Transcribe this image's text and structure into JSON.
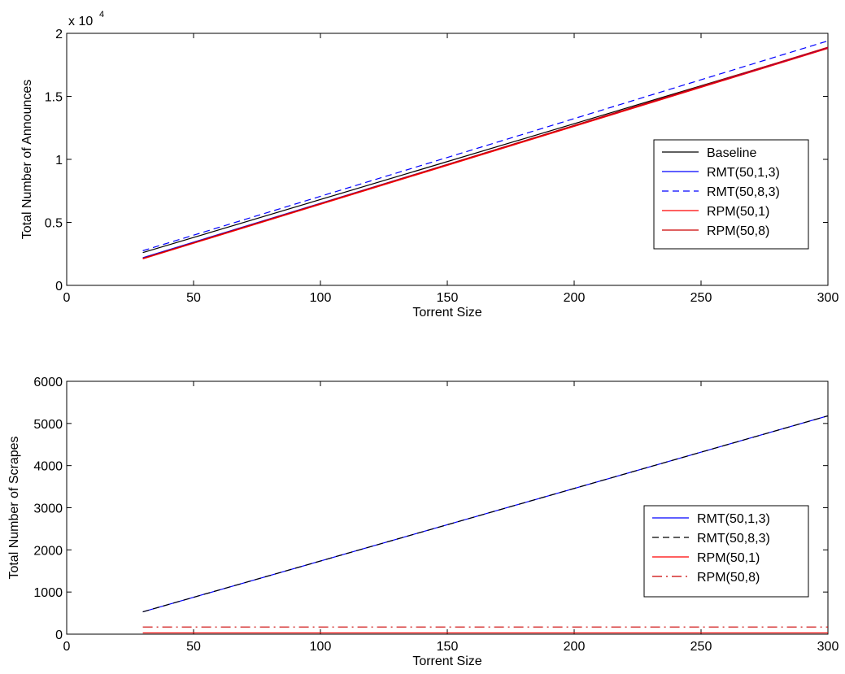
{
  "chart_data": [
    {
      "type": "line",
      "xlabel": "Torrent Size",
      "ylabel": "Total Number of Announces",
      "multiplier_label": "x 10",
      "multiplier_exponent": "4",
      "xlim": [
        0,
        300
      ],
      "ylim": [
        0,
        2
      ],
      "xticks": [
        0,
        50,
        100,
        150,
        200,
        250,
        300
      ],
      "xtick_labels": [
        "0",
        "50",
        "100",
        "150",
        "200",
        "250",
        "300"
      ],
      "yticks": [
        0,
        0.5,
        1,
        1.5,
        2
      ],
      "ytick_labels": [
        "0",
        "0.5",
        "1",
        "1.5",
        "2"
      ],
      "grid": false,
      "legend_position": "right",
      "series": [
        {
          "name": "Baseline",
          "color": "#000000",
          "style": "solid",
          "x": [
            30,
            300
          ],
          "y": [
            0.26,
            1.885
          ]
        },
        {
          "name": "RMT(50,1,3)",
          "color": "#0000ff",
          "style": "solid",
          "x": [
            30,
            300
          ],
          "y": [
            0.22,
            1.885
          ]
        },
        {
          "name": "RMT(50,8,3)",
          "color": "#0000ff",
          "style": "dashed",
          "x": [
            30,
            300
          ],
          "y": [
            0.275,
            1.94
          ]
        },
        {
          "name": "RPM(50,1)",
          "color": "#ff0000",
          "style": "solid",
          "x": [
            30,
            300
          ],
          "y": [
            0.21,
            1.88
          ]
        },
        {
          "name": "RPM(50,8)",
          "color": "#cc0000",
          "style": "solid",
          "x": [
            30,
            300
          ],
          "y": [
            0.215,
            1.89
          ]
        }
      ]
    },
    {
      "type": "line",
      "xlabel": "Torrent Size",
      "ylabel": "Total Number of Scrapes",
      "xlim": [
        0,
        300
      ],
      "ylim": [
        0,
        6000
      ],
      "xticks": [
        0,
        50,
        100,
        150,
        200,
        250,
        300
      ],
      "xtick_labels": [
        "0",
        "50",
        "100",
        "150",
        "200",
        "250",
        "300"
      ],
      "yticks": [
        0,
        1000,
        2000,
        3000,
        4000,
        5000,
        6000
      ],
      "ytick_labels": [
        "0",
        "1000",
        "2000",
        "3000",
        "4000",
        "5000",
        "6000"
      ],
      "grid": false,
      "legend_position": "right",
      "series": [
        {
          "name": "RMT(50,1,3)",
          "color": "#0000ff",
          "style": "solid",
          "x": [
            30,
            300
          ],
          "y": [
            530,
            5180
          ]
        },
        {
          "name": "RMT(50,8,3)",
          "color": "#000000",
          "style": "dashed",
          "x": [
            30,
            300
          ],
          "y": [
            530,
            5180
          ]
        },
        {
          "name": "RPM(50,1)",
          "color": "#ff0000",
          "style": "solid",
          "x": [
            30,
            300
          ],
          "y": [
            30,
            30
          ]
        },
        {
          "name": "RPM(50,8)",
          "color": "#cc0000",
          "style": "dashdot",
          "x": [
            30,
            300
          ],
          "y": [
            170,
            170
          ]
        }
      ]
    }
  ]
}
